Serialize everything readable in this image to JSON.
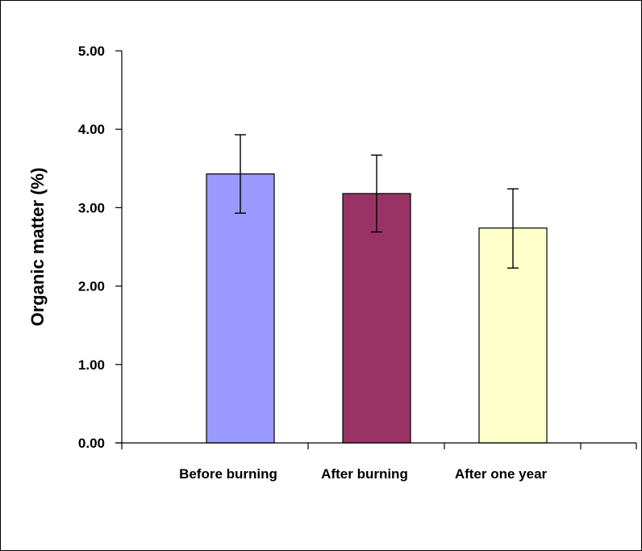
{
  "chart_data": {
    "type": "bar",
    "title": "",
    "xlabel": "",
    "ylabel": "Organic matter (%)",
    "ylim": [
      0,
      5
    ],
    "yticks": [
      "0.00",
      "1.00",
      "2.00",
      "3.00",
      "4.00",
      "5.00"
    ],
    "grid": false,
    "legend": "none",
    "categories": [
      "Before burning",
      "After burning",
      "After one year"
    ],
    "values": [
      3.43,
      3.18,
      2.74
    ],
    "error_plus": [
      0.5,
      0.49,
      0.5
    ],
    "error_minus": [
      0.5,
      0.49,
      0.51
    ],
    "colors": [
      "#9999ff",
      "#993366",
      "#ffffcc"
    ]
  }
}
